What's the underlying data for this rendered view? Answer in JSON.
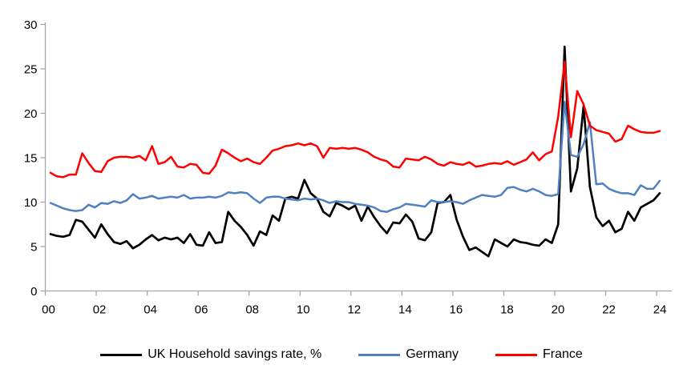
{
  "chart_data": {
    "type": "line",
    "title": "",
    "xlabel": "",
    "ylabel": "",
    "background_color": "#FFFFFF",
    "axis_color": "#A6A6A6",
    "text_color": "#000000",
    "grid": false,
    "legend_position": "bottom",
    "ylim": [
      0,
      30
    ],
    "y_ticks": [
      0,
      5,
      10,
      15,
      20,
      25,
      30
    ],
    "x_tick_labels": [
      "00",
      "02",
      "04",
      "06",
      "08",
      "10",
      "12",
      "14",
      "16",
      "18",
      "20",
      "22",
      "24"
    ],
    "x_start": "2000 Q1",
    "x_end": "2024 Q1",
    "x_step": "quarter",
    "series": [
      {
        "name": "UK Household savings rate, %",
        "color": "#000000",
        "stroke_width": 2.7,
        "values": [
          6.4,
          6.2,
          6.1,
          6.3,
          8.0,
          7.8,
          6.9,
          6.0,
          7.5,
          6.4,
          5.5,
          5.3,
          5.6,
          4.8,
          5.2,
          5.8,
          6.3,
          5.7,
          6.0,
          5.8,
          6.0,
          5.4,
          6.4,
          5.2,
          5.1,
          6.6,
          5.4,
          5.5,
          8.9,
          7.9,
          7.2,
          6.3,
          5.1,
          6.7,
          6.3,
          8.5,
          7.9,
          10.4,
          10.6,
          10.4,
          12.5,
          11.0,
          10.4,
          8.9,
          8.4,
          9.9,
          9.6,
          9.2,
          9.6,
          7.9,
          9.5,
          8.3,
          7.3,
          6.5,
          7.7,
          7.6,
          8.6,
          7.8,
          5.9,
          5.7,
          6.6,
          9.9,
          10.0,
          10.8,
          8.0,
          6.1,
          4.6,
          4.9,
          4.4,
          3.9,
          5.8,
          5.4,
          5.0,
          5.8,
          5.5,
          5.4,
          5.2,
          5.1,
          5.8,
          5.4,
          7.5,
          27.5,
          11.2,
          13.8,
          20.8,
          11.7,
          8.3,
          7.3,
          7.9,
          6.6,
          7.0,
          8.9,
          7.9,
          9.4,
          9.8,
          10.2,
          11.0
        ]
      },
      {
        "name": "Germany",
        "color": "#4E81BD",
        "stroke_width": 2.5,
        "values": [
          9.9,
          9.6,
          9.3,
          9.1,
          9.0,
          9.1,
          9.7,
          9.4,
          9.9,
          9.8,
          10.1,
          9.9,
          10.2,
          10.9,
          10.4,
          10.5,
          10.7,
          10.4,
          10.5,
          10.6,
          10.5,
          10.8,
          10.4,
          10.5,
          10.5,
          10.6,
          10.5,
          10.7,
          11.1,
          11.0,
          11.1,
          11.0,
          10.4,
          9.9,
          10.5,
          10.6,
          10.6,
          10.4,
          10.3,
          10.2,
          10.4,
          10.3,
          10.4,
          10.2,
          9.9,
          10.1,
          10.0,
          10.0,
          9.8,
          9.7,
          9.6,
          9.4,
          9.0,
          8.9,
          9.2,
          9.4,
          9.8,
          9.7,
          9.6,
          9.5,
          10.2,
          10.0,
          10.0,
          10.1,
          10.0,
          9.8,
          10.2,
          10.5,
          10.8,
          10.7,
          10.6,
          10.8,
          11.6,
          11.7,
          11.4,
          11.2,
          11.5,
          11.2,
          10.8,
          10.7,
          10.9,
          21.3,
          15.3,
          15.1,
          16.5,
          19.0,
          12.0,
          12.1,
          11.5,
          11.2,
          11.0,
          11.0,
          10.8,
          11.9,
          11.5,
          11.5,
          12.4
        ]
      },
      {
        "name": "France",
        "color": "#FF0000",
        "stroke_width": 2.5,
        "values": [
          13.3,
          12.9,
          12.8,
          13.1,
          13.1,
          15.5,
          14.4,
          13.5,
          13.4,
          14.6,
          15.0,
          15.1,
          15.1,
          15.0,
          15.2,
          14.7,
          16.3,
          14.3,
          14.5,
          15.1,
          14.0,
          13.9,
          14.3,
          14.2,
          13.3,
          13.2,
          14.1,
          15.9,
          15.5,
          15.0,
          14.6,
          14.9,
          14.5,
          14.3,
          15.0,
          15.8,
          16.0,
          16.3,
          16.4,
          16.6,
          16.4,
          16.6,
          16.3,
          15.0,
          16.1,
          16.0,
          16.1,
          16.0,
          16.1,
          15.9,
          15.6,
          15.1,
          14.8,
          14.6,
          14.0,
          13.9,
          14.9,
          14.8,
          14.7,
          15.1,
          14.8,
          14.3,
          14.1,
          14.5,
          14.3,
          14.2,
          14.5,
          14.0,
          14.1,
          14.3,
          14.4,
          14.3,
          14.6,
          14.2,
          14.5,
          14.8,
          15.6,
          14.7,
          15.4,
          15.7,
          19.6,
          25.8,
          17.3,
          22.5,
          21.0,
          18.6,
          18.1,
          17.9,
          17.7,
          16.8,
          17.1,
          18.6,
          18.2,
          17.9,
          17.8,
          17.8,
          18.0
        ]
      }
    ]
  }
}
